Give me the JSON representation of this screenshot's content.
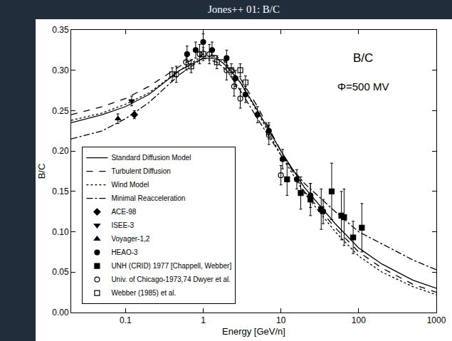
{
  "chart_data": {
    "type": "scatter",
    "title": "Jones++ 01: B/C",
    "x_label": "Energy [GeV/n]",
    "y_label": "B/C",
    "annotations": [
      "B/C",
      "Φ=500 MV"
    ],
    "log": "x",
    "grid": false,
    "legend": "lower left",
    "xlim": [
      0.02,
      1000
    ],
    "xticks": [
      0.1,
      1,
      10,
      100,
      1000
    ],
    "ylim": [
      0,
      0.35
    ],
    "yticks": [
      {
        "value": 0,
        "label": "0.00"
      },
      {
        "value": 0.05,
        "label": "0.05"
      },
      {
        "value": 0.1,
        "label": "0.10"
      },
      {
        "value": 0.15,
        "label": "0.15"
      },
      {
        "value": 0.2,
        "label": "0.20"
      },
      {
        "value": 0.25,
        "label": "0.25"
      },
      {
        "value": 0.3,
        "label": "0.30"
      },
      {
        "value": 0.35,
        "label": "0.35"
      }
    ],
    "series": [
      {
        "name": "Standard Diffusion Model",
        "type": "line",
        "color": "#000000",
        "line_style": "solid",
        "x": [
          0.02,
          0.05,
          0.1,
          0.2,
          0.5,
          1,
          1.5,
          2,
          3,
          5,
          10,
          20,
          50,
          100,
          200,
          500,
          1000
        ],
        "values": [
          0.235,
          0.245,
          0.255,
          0.27,
          0.3,
          0.315,
          0.315,
          0.305,
          0.285,
          0.25,
          0.2,
          0.155,
          0.11,
          0.08,
          0.06,
          0.04,
          0.03
        ]
      },
      {
        "name": "Turbulent Diffusion",
        "type": "line",
        "color": "#000000",
        "line_style": "dash",
        "x": [
          0.02,
          0.05,
          0.1,
          0.2,
          0.5,
          1,
          1.5,
          2,
          3,
          5,
          10,
          20,
          50,
          100,
          200,
          500,
          1000
        ],
        "values": [
          0.245,
          0.255,
          0.265,
          0.28,
          0.305,
          0.32,
          0.318,
          0.31,
          0.29,
          0.255,
          0.2,
          0.15,
          0.105,
          0.075,
          0.055,
          0.035,
          0.025
        ]
      },
      {
        "name": "Wind Model",
        "type": "line",
        "color": "#000000",
        "line_style": "dot",
        "x": [
          0.02,
          0.05,
          0.1,
          0.2,
          0.5,
          1,
          1.5,
          2,
          3,
          5,
          10,
          20,
          50,
          100,
          200,
          500,
          1000
        ],
        "values": [
          0.238,
          0.247,
          0.258,
          0.272,
          0.3,
          0.318,
          0.317,
          0.308,
          0.285,
          0.248,
          0.195,
          0.148,
          0.1,
          0.07,
          0.05,
          0.032,
          0.022
        ]
      },
      {
        "name": "Minimal Reacceleration",
        "type": "line",
        "color": "#000000",
        "line_style": "dashdot",
        "x": [
          0.02,
          0.05,
          0.1,
          0.2,
          0.5,
          1,
          1.5,
          2,
          3,
          5,
          10,
          20,
          50,
          100,
          200,
          500,
          1000
        ],
        "values": [
          0.215,
          0.225,
          0.24,
          0.26,
          0.295,
          0.315,
          0.31,
          0.3,
          0.275,
          0.24,
          0.195,
          0.16,
          0.125,
          0.1,
          0.085,
          0.065,
          0.053
        ]
      },
      {
        "name": "ACE-98",
        "type": "scatter",
        "color": "#000000",
        "marker": "diamond",
        "x": [
          0.13
        ],
        "values": [
          0.245
        ],
        "errors": [
          0.005
        ]
      },
      {
        "name": "ISEE-3",
        "type": "scatter",
        "color": "#000000",
        "marker": "triangle-down",
        "x": [
          0.12
        ],
        "values": [
          0.262
        ],
        "errors": [
          0.006
        ]
      },
      {
        "name": "Voyager-1,2",
        "type": "scatter",
        "color": "#000000",
        "marker": "triangle-up",
        "x": [
          0.08
        ],
        "values": [
          0.24
        ],
        "errors": [
          0.006
        ]
      },
      {
        "name": "HEAO-3",
        "type": "scatter",
        "color": "#000000",
        "marker": "circle",
        "x": [
          0.62,
          0.8,
          1.0,
          1.3,
          2.0,
          2.6,
          3.5,
          5.0,
          7.0,
          10.5,
          16,
          24,
          35
        ],
        "values": [
          0.32,
          0.325,
          0.335,
          0.325,
          0.315,
          0.29,
          0.27,
          0.245,
          0.225,
          0.19,
          0.165,
          0.145,
          0.125
        ],
        "errors": [
          0.01,
          0.01,
          0.01,
          0.01,
          0.01,
          0.01,
          0.01,
          0.01,
          0.01,
          0.012,
          0.012,
          0.015,
          0.015
        ]
      },
      {
        "name": "UNH (CRID) 1977 [Chappell, Webber]",
        "type": "scatter",
        "color": "#000000",
        "marker": "square",
        "x": [
          12,
          18,
          24,
          33,
          45,
          60,
          65,
          85,
          110
        ],
        "values": [
          0.165,
          0.148,
          0.14,
          0.128,
          0.15,
          0.12,
          0.118,
          0.093,
          0.105
        ],
        "errors": [
          0.02,
          0.02,
          0.02,
          0.025,
          0.035,
          0.03,
          0.035,
          0.02,
          0.03
        ]
      },
      {
        "name": "Univ. of Chicago-1973,74 Dwyer et al.",
        "type": "scatter",
        "color": "#000000",
        "marker": "circle-open",
        "x": [
          0.45,
          0.6,
          0.9,
          1.2,
          2,
          2.5,
          3,
          7,
          10
        ],
        "values": [
          0.295,
          0.31,
          0.32,
          0.32,
          0.3,
          0.28,
          0.265,
          0.22,
          0.17
        ],
        "errors": [
          0.01,
          0.01,
          0.012,
          0.012,
          0.012,
          0.012,
          0.012,
          0.012,
          0.012
        ]
      },
      {
        "name": "Webber (1985) et al.",
        "type": "scatter",
        "color": "#000000",
        "marker": "square-open",
        "x": [
          0.4,
          0.7,
          1.0,
          1.5,
          2.3,
          3,
          3.5
        ],
        "values": [
          0.295,
          0.305,
          0.32,
          0.31,
          0.3,
          0.3,
          0.285
        ],
        "errors": [
          0.008,
          0.008,
          0.008,
          0.008,
          0.008,
          0.008,
          0.008
        ]
      }
    ]
  }
}
